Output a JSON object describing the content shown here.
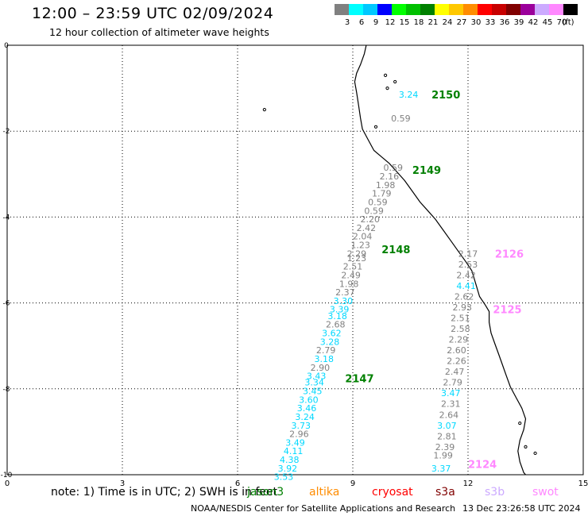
{
  "header": {
    "title": "12:00 – 23:59 UTC 02/09/2024",
    "subtitle": "12 hour collection of altimeter wave heights"
  },
  "colorbar": {
    "unit_label": "(ft)",
    "bins": [
      {
        "label": "3",
        "color": "#808080"
      },
      {
        "label": "6",
        "color": "#00ffff"
      },
      {
        "label": "9",
        "color": "#00c8ff"
      },
      {
        "label": "12",
        "color": "#0000ff"
      },
      {
        "label": "15",
        "color": "#00ff00"
      },
      {
        "label": "18",
        "color": "#00c000"
      },
      {
        "label": "21",
        "color": "#008000"
      },
      {
        "label": "24",
        "color": "#ffff00"
      },
      {
        "label": "27",
        "color": "#ffc800"
      },
      {
        "label": "30",
        "color": "#ff8c00"
      },
      {
        "label": "33",
        "color": "#ff0000"
      },
      {
        "label": "36",
        "color": "#c80000"
      },
      {
        "label": "39",
        "color": "#800000"
      },
      {
        "label": "42",
        "color": "#9b009b"
      },
      {
        "label": "45",
        "color": "#ccaaff"
      },
      {
        "label": "70",
        "color": "#ff88ff"
      },
      {
        "label": "",
        "color": "#000000"
      }
    ]
  },
  "map": {
    "x_range": [
      0,
      15
    ],
    "y_range": [
      -10,
      0
    ],
    "x_ticks": [
      "0",
      "3",
      "6",
      "9",
      "12",
      "15"
    ],
    "y_ticks": [
      "0",
      "-2",
      "-4",
      "-6",
      "-8",
      "-10"
    ],
    "gridlines": true,
    "colors": {
      "gray": "#808080",
      "cyan": "#00d8ff",
      "green": "#008000",
      "pink": "#ff88ff"
    },
    "pass_labels": [
      {
        "text": "2150",
        "lon": 11.05,
        "lat": -1.15,
        "color": "green"
      },
      {
        "text": "2149",
        "lon": 10.55,
        "lat": -2.9,
        "color": "green"
      },
      {
        "text": "2148",
        "lon": 9.75,
        "lat": -4.75,
        "color": "green"
      },
      {
        "text": "2147",
        "lon": 8.8,
        "lat": -7.75,
        "color": "green"
      },
      {
        "text": "2126",
        "lon": 12.7,
        "lat": -4.85,
        "color": "pink"
      },
      {
        "text": "2125",
        "lon": 12.65,
        "lat": -6.15,
        "color": "pink"
      },
      {
        "text": "2124",
        "lon": 12.0,
        "lat": -9.75,
        "color": "pink"
      }
    ],
    "swh_values": [
      {
        "text": "3.24",
        "lon": 10.45,
        "lat": -1.15,
        "color": "cyan"
      },
      {
        "text": "0.59",
        "lon": 10.25,
        "lat": -1.7,
        "color": "gray"
      },
      {
        "text": "0.59",
        "lon": 10.05,
        "lat": -2.85,
        "color": "gray"
      },
      {
        "text": "2.16",
        "lon": 9.95,
        "lat": -3.05,
        "color": "gray"
      },
      {
        "text": "1.98",
        "lon": 9.85,
        "lat": -3.25,
        "color": "gray"
      },
      {
        "text": "1.79",
        "lon": 9.75,
        "lat": -3.45,
        "color": "gray"
      },
      {
        "text": "0.59",
        "lon": 9.65,
        "lat": -3.65,
        "color": "gray"
      },
      {
        "text": "0.59",
        "lon": 9.55,
        "lat": -3.85,
        "color": "gray"
      },
      {
        "text": "2.20",
        "lon": 9.45,
        "lat": -4.05,
        "color": "gray"
      },
      {
        "text": "2.42",
        "lon": 9.35,
        "lat": -4.25,
        "color": "gray"
      },
      {
        "text": "2.04",
        "lon": 9.25,
        "lat": -4.45,
        "color": "gray"
      },
      {
        "text": "1.23",
        "lon": 9.2,
        "lat": -4.65,
        "color": "gray"
      },
      {
        "text": "2.29",
        "lon": 9.1,
        "lat": -4.85,
        "color": "gray"
      },
      {
        "text": "1.23",
        "lon": 9.1,
        "lat": -4.95,
        "color": "gray"
      },
      {
        "text": "2.51",
        "lon": 9.0,
        "lat": -5.15,
        "color": "gray"
      },
      {
        "text": "2.49",
        "lon": 8.95,
        "lat": -5.35,
        "color": "gray"
      },
      {
        "text": "1.98",
        "lon": 8.9,
        "lat": -5.55,
        "color": "gray"
      },
      {
        "text": "2.37",
        "lon": 8.8,
        "lat": -5.75,
        "color": "gray"
      },
      {
        "text": "3.30",
        "lon": 8.75,
        "lat": -5.95,
        "color": "cyan"
      },
      {
        "text": "3.39",
        "lon": 8.65,
        "lat": -6.15,
        "color": "cyan"
      },
      {
        "text": "3.18",
        "lon": 8.6,
        "lat": -6.3,
        "color": "cyan"
      },
      {
        "text": "2.68",
        "lon": 8.55,
        "lat": -6.5,
        "color": "gray"
      },
      {
        "text": "3.62",
        "lon": 8.45,
        "lat": -6.7,
        "color": "cyan"
      },
      {
        "text": "3.28",
        "lon": 8.4,
        "lat": -6.9,
        "color": "cyan"
      },
      {
        "text": "2.79",
        "lon": 8.3,
        "lat": -7.1,
        "color": "gray"
      },
      {
        "text": "3.18",
        "lon": 8.25,
        "lat": -7.3,
        "color": "cyan"
      },
      {
        "text": "2.90",
        "lon": 8.15,
        "lat": -7.5,
        "color": "gray"
      },
      {
        "text": "3.43",
        "lon": 8.05,
        "lat": -7.7,
        "color": "cyan"
      },
      {
        "text": "3.34",
        "lon": 8.0,
        "lat": -7.85,
        "color": "cyan"
      },
      {
        "text": "3.45",
        "lon": 7.95,
        "lat": -8.05,
        "color": "cyan"
      },
      {
        "text": "3.60",
        "lon": 7.85,
        "lat": -8.25,
        "color": "cyan"
      },
      {
        "text": "3.46",
        "lon": 7.8,
        "lat": -8.45,
        "color": "cyan"
      },
      {
        "text": "3.24",
        "lon": 7.75,
        "lat": -8.65,
        "color": "cyan"
      },
      {
        "text": "3.73",
        "lon": 7.65,
        "lat": -8.85,
        "color": "cyan"
      },
      {
        "text": "2.96",
        "lon": 7.6,
        "lat": -9.05,
        "color": "gray"
      },
      {
        "text": "3.49",
        "lon": 7.5,
        "lat": -9.25,
        "color": "cyan"
      },
      {
        "text": "4.11",
        "lon": 7.45,
        "lat": -9.45,
        "color": "cyan"
      },
      {
        "text": "4.38",
        "lon": 7.35,
        "lat": -9.65,
        "color": "cyan"
      },
      {
        "text": "3.92",
        "lon": 7.3,
        "lat": -9.85,
        "color": "cyan"
      },
      {
        "text": "3.53",
        "lon": 7.2,
        "lat": -10.05,
        "color": "cyan"
      },
      {
        "text": "2.17",
        "lon": 12.0,
        "lat": -4.85,
        "color": "gray"
      },
      {
        "text": "2.53",
        "lon": 12.0,
        "lat": -5.1,
        "color": "gray"
      },
      {
        "text": "2.42",
        "lon": 11.95,
        "lat": -5.35,
        "color": "gray"
      },
      {
        "text": "4.41",
        "lon": 11.95,
        "lat": -5.6,
        "color": "cyan"
      },
      {
        "text": "2.62",
        "lon": 11.9,
        "lat": -5.85,
        "color": "gray"
      },
      {
        "text": "2.93",
        "lon": 11.85,
        "lat": -6.1,
        "color": "gray"
      },
      {
        "text": "2.51",
        "lon": 11.8,
        "lat": -6.35,
        "color": "gray"
      },
      {
        "text": "2.58",
        "lon": 11.8,
        "lat": -6.6,
        "color": "gray"
      },
      {
        "text": "2.29",
        "lon": 11.75,
        "lat": -6.85,
        "color": "gray"
      },
      {
        "text": "2.60",
        "lon": 11.7,
        "lat": -7.1,
        "color": "gray"
      },
      {
        "text": "2.26",
        "lon": 11.7,
        "lat": -7.35,
        "color": "gray"
      },
      {
        "text": "2.47",
        "lon": 11.65,
        "lat": -7.6,
        "color": "gray"
      },
      {
        "text": "2.79",
        "lon": 11.6,
        "lat": -7.85,
        "color": "gray"
      },
      {
        "text": "3.47",
        "lon": 11.55,
        "lat": -8.1,
        "color": "cyan"
      },
      {
        "text": "2.31",
        "lon": 11.55,
        "lat": -8.35,
        "color": "gray"
      },
      {
        "text": "2.64",
        "lon": 11.5,
        "lat": -8.6,
        "color": "gray"
      },
      {
        "text": "3.07",
        "lon": 11.45,
        "lat": -8.85,
        "color": "cyan"
      },
      {
        "text": "2.81",
        "lon": 11.45,
        "lat": -9.1,
        "color": "gray"
      },
      {
        "text": "2.39",
        "lon": 11.4,
        "lat": -9.35,
        "color": "gray"
      },
      {
        "text": "1.99",
        "lon": 11.35,
        "lat": -9.55,
        "color": "gray"
      },
      {
        "text": "3.37",
        "lon": 11.3,
        "lat": -9.85,
        "color": "cyan"
      }
    ],
    "coastline": [
      [
        9.35,
        0.0
      ],
      [
        9.3,
        -0.2
      ],
      [
        9.2,
        -0.45
      ],
      [
        9.1,
        -0.65
      ],
      [
        9.05,
        -0.85
      ],
      [
        9.1,
        -1.1
      ],
      [
        9.15,
        -1.4
      ],
      [
        9.2,
        -1.7
      ],
      [
        9.25,
        -1.95
      ],
      [
        9.4,
        -2.2
      ],
      [
        9.55,
        -2.45
      ],
      [
        9.75,
        -2.6
      ],
      [
        9.95,
        -2.75
      ],
      [
        10.15,
        -2.95
      ],
      [
        10.35,
        -3.15
      ],
      [
        10.55,
        -3.4
      ],
      [
        10.75,
        -3.65
      ],
      [
        10.95,
        -3.85
      ],
      [
        11.15,
        -4.05
      ],
      [
        11.35,
        -4.3
      ],
      [
        11.55,
        -4.55
      ],
      [
        11.75,
        -4.8
      ],
      [
        11.95,
        -5.05
      ],
      [
        12.1,
        -5.25
      ],
      [
        12.2,
        -5.55
      ],
      [
        12.3,
        -5.85
      ],
      [
        12.45,
        -6.05
      ],
      [
        12.55,
        -6.2
      ],
      [
        12.55,
        -6.45
      ],
      [
        12.6,
        -6.7
      ],
      [
        12.7,
        -6.95
      ],
      [
        12.8,
        -7.2
      ],
      [
        12.9,
        -7.45
      ],
      [
        13.0,
        -7.7
      ],
      [
        13.1,
        -7.95
      ],
      [
        13.25,
        -8.2
      ],
      [
        13.4,
        -8.45
      ],
      [
        13.5,
        -8.7
      ],
      [
        13.45,
        -8.95
      ],
      [
        13.35,
        -9.2
      ],
      [
        13.3,
        -9.45
      ],
      [
        13.35,
        -9.7
      ],
      [
        13.45,
        -9.95
      ],
      [
        13.5,
        -10.0
      ]
    ],
    "islands": [
      [
        6.7,
        -1.5
      ],
      [
        9.85,
        -0.7
      ],
      [
        9.9,
        -1.0
      ],
      [
        10.1,
        -0.85
      ],
      [
        9.6,
        -1.9
      ],
      [
        13.35,
        -8.8
      ],
      [
        13.5,
        -9.35
      ],
      [
        13.75,
        -9.5
      ]
    ]
  },
  "footer": {
    "note": "note:  1) Time is in UTC;  2) SWH is in feet",
    "satellites": [
      {
        "name": "jason3",
        "color": "#008000"
      },
      {
        "name": "altika",
        "color": "#ff8c00"
      },
      {
        "name": "cryosat",
        "color": "#ff0000"
      },
      {
        "name": "s3a",
        "color": "#800000"
      },
      {
        "name": "s3b",
        "color": "#ccaaff"
      },
      {
        "name": "swot",
        "color": "#ff88ff"
      }
    ],
    "credit": "NOAA/NESDIS Center for Satellite Applications and Research",
    "timestamp": "13 Dec 23:26:58 UTC 2024"
  }
}
